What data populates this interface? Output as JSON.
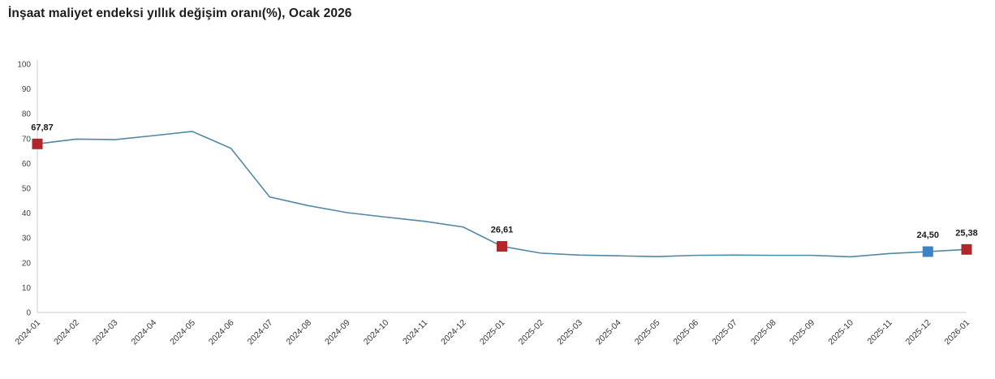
{
  "header": {
    "title": "İnşaat maliyet endeksi yıllık değişim oranı(%), Ocak 2026"
  },
  "chart_data": {
    "type": "line",
    "title": "İnşaat maliyet endeksi yıllık değişim oranı(%), Ocak 2026",
    "xlabel": "",
    "ylabel": "",
    "x": [
      "2024-01",
      "2024-02",
      "2024-03",
      "2024-04",
      "2024-05",
      "2024-06",
      "2024-07",
      "2024-08",
      "2024-09",
      "2024-10",
      "2024-11",
      "2024-12",
      "2025-01",
      "2025-02",
      "2025-03",
      "2025-04",
      "2025-05",
      "2025-06",
      "2025-07",
      "2025-08",
      "2025-09",
      "2025-10",
      "2025-11",
      "2025-12",
      "2026-01"
    ],
    "values": [
      67.87,
      69.8,
      69.6,
      71.2,
      72.9,
      66.1,
      46.5,
      43.0,
      40.2,
      38.4,
      36.7,
      34.4,
      26.61,
      23.9,
      23.1,
      22.8,
      22.5,
      23.0,
      23.1,
      23.0,
      23.0,
      22.4,
      23.7,
      24.5,
      25.38
    ],
    "ylim": [
      0,
      100
    ],
    "y_ticks": [
      0,
      10,
      20,
      30,
      40,
      50,
      60,
      70,
      80,
      90,
      100
    ],
    "grid": false,
    "legend": false,
    "colors": {
      "line": "#4f87a5",
      "axis": "#cccccc",
      "marker_red": "#b2252a",
      "marker_blue": "#3d82c4"
    },
    "labeled_points": [
      {
        "x": "2024-01",
        "value": 67.87,
        "label": "67,87",
        "color": "#b2252a"
      },
      {
        "x": "2025-01",
        "value": 26.61,
        "label": "26,61",
        "color": "#b2252a"
      },
      {
        "x": "2025-12",
        "value": 24.5,
        "label": "24,50",
        "color": "#3d82c4"
      },
      {
        "x": "2026-01",
        "value": 25.38,
        "label": "25,38",
        "color": "#b2252a"
      }
    ]
  }
}
